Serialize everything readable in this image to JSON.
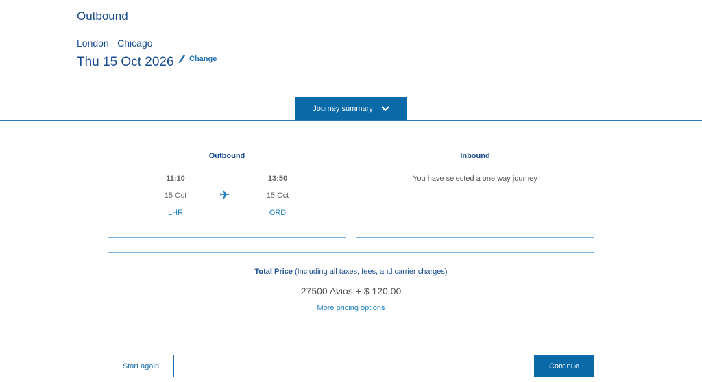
{
  "header": {
    "title": "Outbound",
    "route": "London - Chicago",
    "date": "Thu 15 Oct 2026",
    "change_label": "Change"
  },
  "journey_summary_label": "Journey summary",
  "outbound": {
    "heading": "Outbound",
    "depart": {
      "time": "11:10",
      "date": "15 Oct",
      "airport": "LHR"
    },
    "arrive": {
      "time": "13:50",
      "date": "15 Oct",
      "airport": "ORD"
    }
  },
  "inbound": {
    "heading": "Inbound",
    "message": "You have selected a one way journey"
  },
  "total": {
    "label": "Total Price",
    "note": " (Including all taxes, fees, and carrier charges)",
    "amount": "27500 Avios + $ 120.00",
    "more_link": "More pricing options"
  },
  "buttons": {
    "start_again": "Start again",
    "continue": "Continue"
  }
}
